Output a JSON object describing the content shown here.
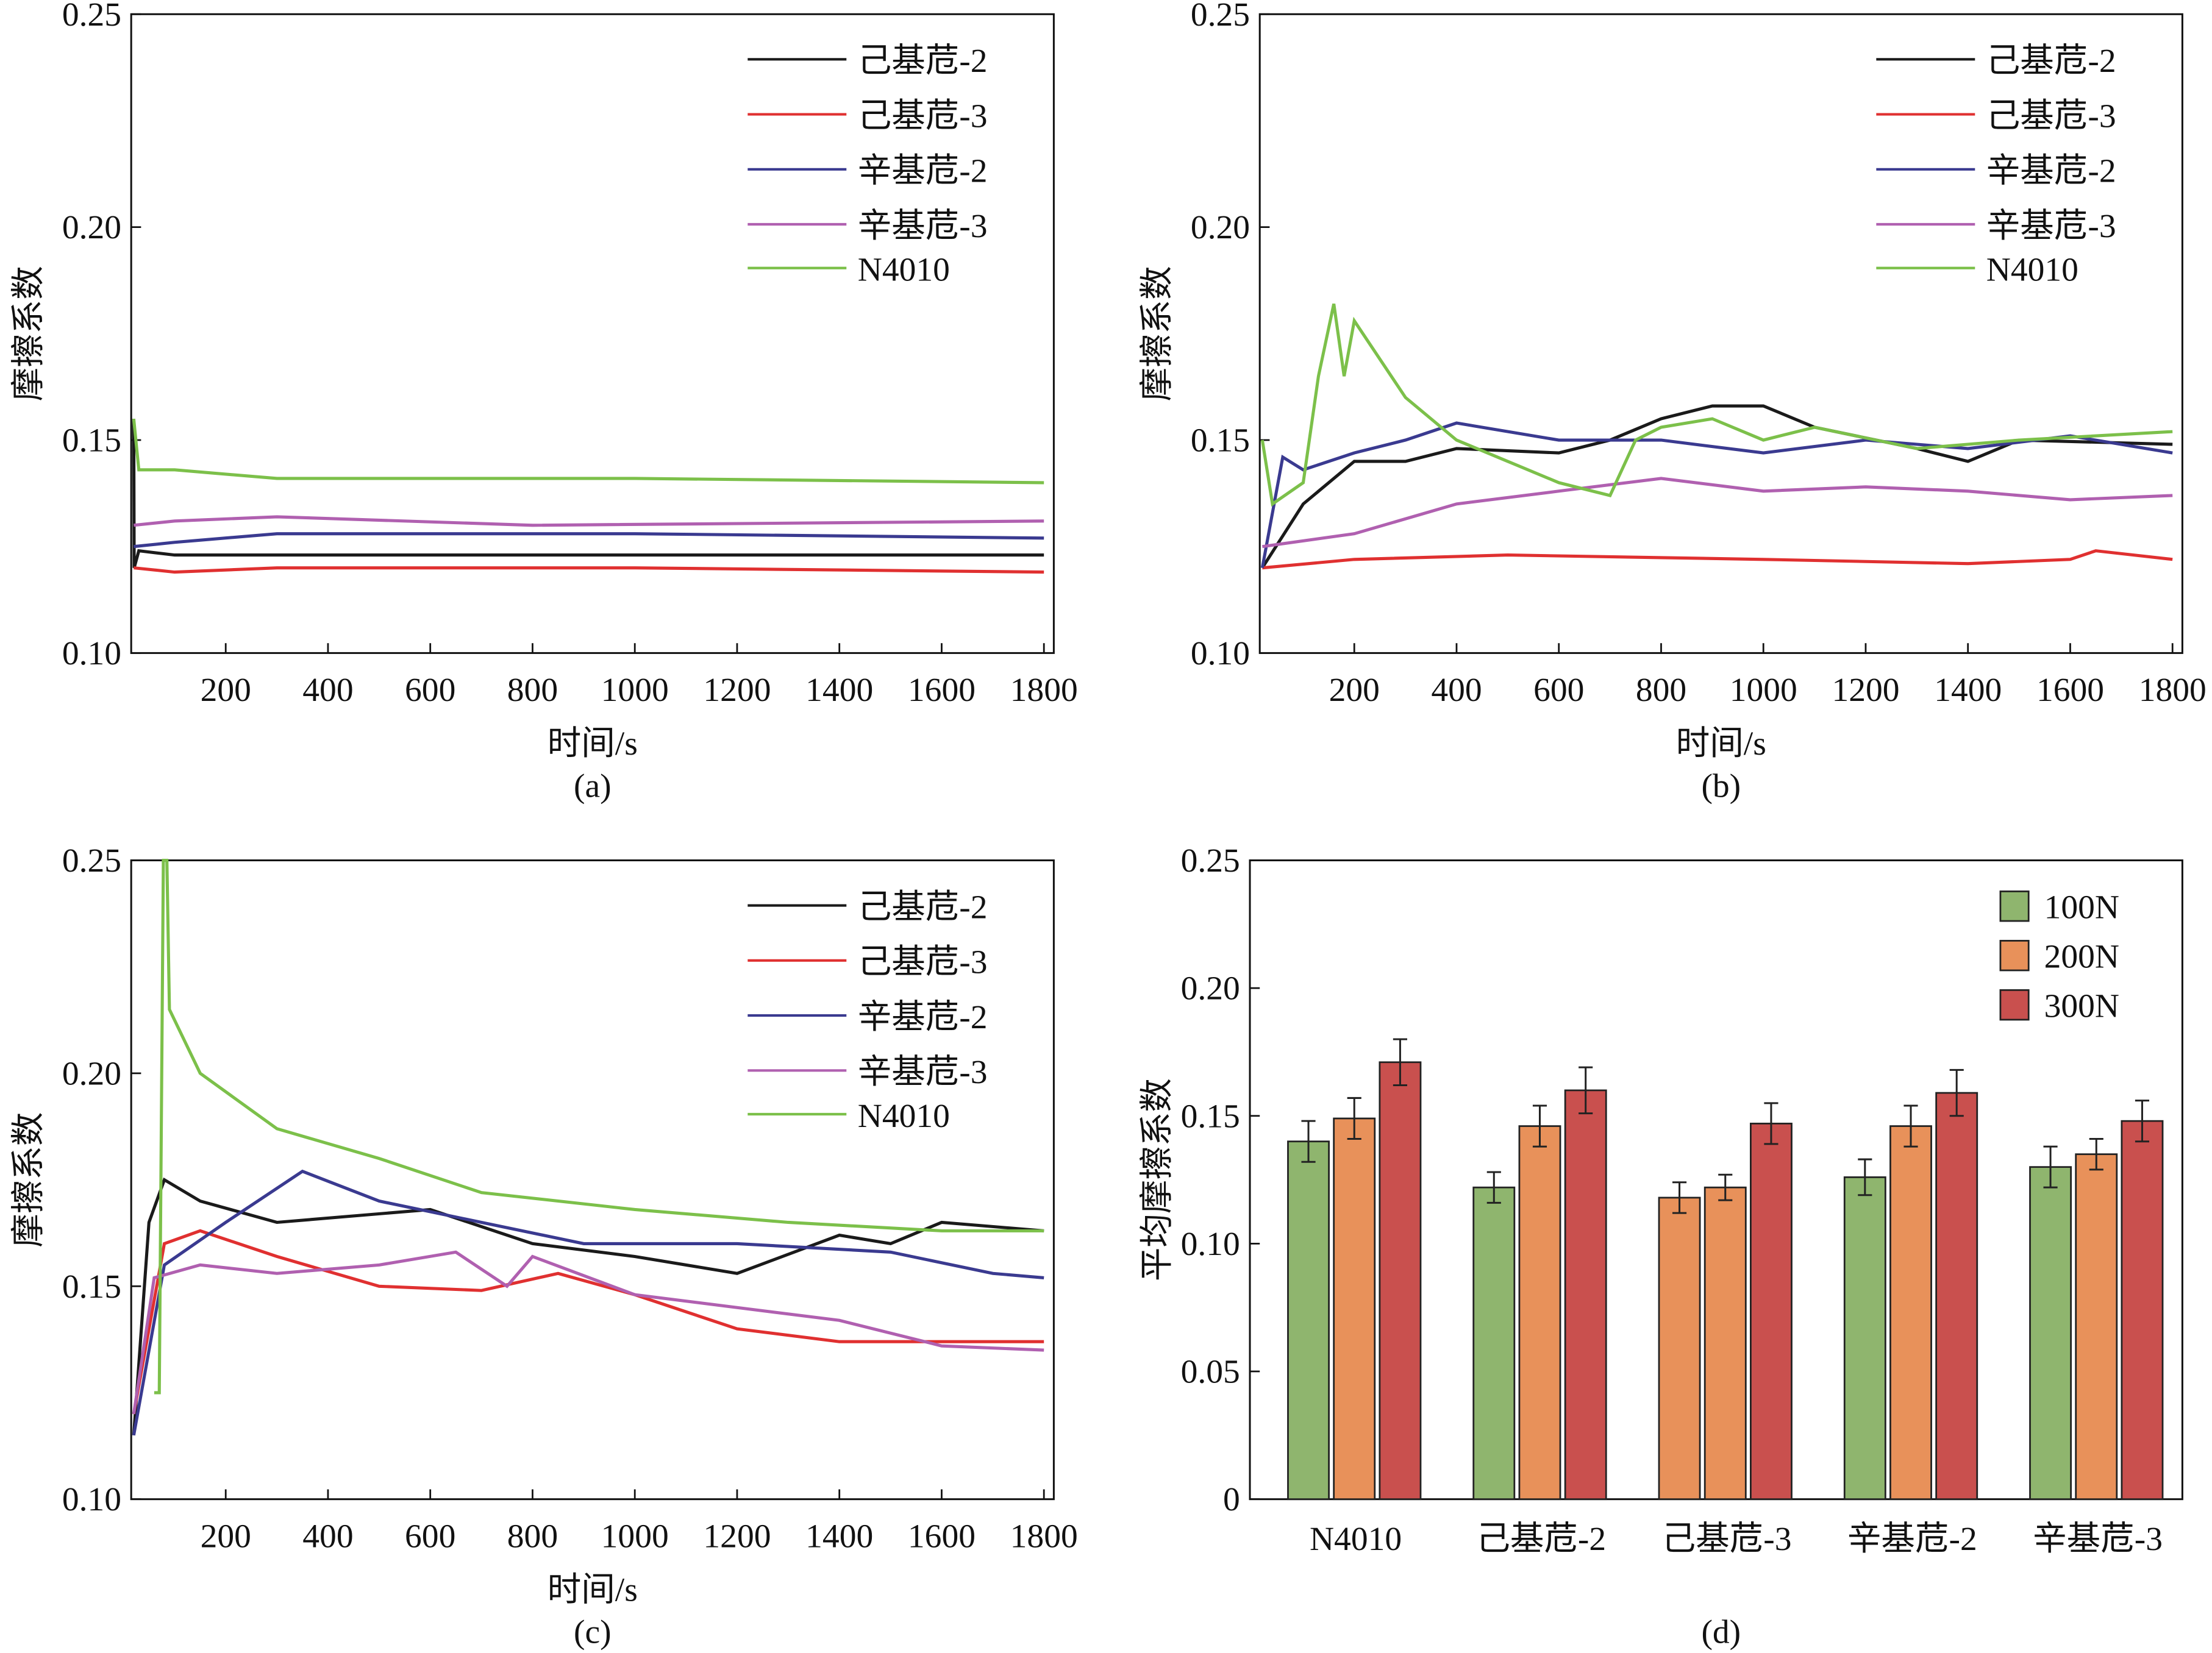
{
  "chart_data": [
    {
      "type": "line",
      "panel_label": "(a)",
      "xlabel": "时间/s",
      "ylabel": "摩擦系数",
      "xlim": [
        0,
        1800
      ],
      "ylim": [
        0.1,
        0.25
      ],
      "xticks": [
        "200",
        "400",
        "600",
        "800",
        "1000",
        "1200",
        "1400",
        "1600",
        "1800"
      ],
      "yticks": [
        "0.10",
        "0.15",
        "0.20",
        "0.25"
      ],
      "legend_position": "top-right",
      "series": [
        {
          "name": "己基苊-2",
          "color": "#1a1a1a",
          "points": [
            [
              20,
              0.155
            ],
            [
              21,
              0.12
            ],
            [
              30,
              0.124
            ],
            [
              100,
              0.123
            ],
            [
              600,
              0.123
            ],
            [
              1800,
              0.123
            ]
          ]
        },
        {
          "name": "己基苊-3",
          "color": "#e03030",
          "points": [
            [
              20,
              0.12
            ],
            [
              100,
              0.119
            ],
            [
              300,
              0.12
            ],
            [
              1000,
              0.12
            ],
            [
              1800,
              0.119
            ]
          ]
        },
        {
          "name": "辛基苊-2",
          "color": "#3a3a90",
          "points": [
            [
              20,
              0.125
            ],
            [
              100,
              0.126
            ],
            [
              300,
              0.128
            ],
            [
              1000,
              0.128
            ],
            [
              1800,
              0.127
            ]
          ]
        },
        {
          "name": "辛基苊-3",
          "color": "#b060b0",
          "points": [
            [
              20,
              0.13
            ],
            [
              100,
              0.131
            ],
            [
              300,
              0.132
            ],
            [
              800,
              0.13
            ],
            [
              1800,
              0.131
            ]
          ]
        },
        {
          "name": "N4010",
          "color": "#7cc04a",
          "points": [
            [
              20,
              0.155
            ],
            [
              30,
              0.143
            ],
            [
              100,
              0.143
            ],
            [
              300,
              0.141
            ],
            [
              1000,
              0.141
            ],
            [
              1800,
              0.14
            ]
          ]
        }
      ]
    },
    {
      "type": "line",
      "panel_label": "(b)",
      "xlabel": "时间/s",
      "ylabel": "摩擦系数",
      "xlim": [
        0,
        1800
      ],
      "ylim": [
        0.1,
        0.25
      ],
      "xticks": [
        "200",
        "400",
        "600",
        "800",
        "1000",
        "1200",
        "1400",
        "1600",
        "1800"
      ],
      "yticks": [
        "0.10",
        "0.15",
        "0.20",
        "0.25"
      ],
      "legend_position": "top-right",
      "series": [
        {
          "name": "己基苊-2",
          "color": "#1a1a1a",
          "points": [
            [
              20,
              0.12
            ],
            [
              100,
              0.135
            ],
            [
              200,
              0.145
            ],
            [
              300,
              0.145
            ],
            [
              400,
              0.148
            ],
            [
              600,
              0.147
            ],
            [
              700,
              0.15
            ],
            [
              800,
              0.155
            ],
            [
              900,
              0.158
            ],
            [
              1000,
              0.158
            ],
            [
              1100,
              0.153
            ],
            [
              1300,
              0.148
            ],
            [
              1400,
              0.145
            ],
            [
              1500,
              0.15
            ],
            [
              1800,
              0.149
            ]
          ]
        },
        {
          "name": "己基苊-3",
          "color": "#e03030",
          "points": [
            [
              20,
              0.12
            ],
            [
              200,
              0.122
            ],
            [
              500,
              0.123
            ],
            [
              1000,
              0.122
            ],
            [
              1400,
              0.121
            ],
            [
              1600,
              0.122
            ],
            [
              1650,
              0.124
            ],
            [
              1800,
              0.122
            ]
          ]
        },
        {
          "name": "辛基苊-2",
          "color": "#3a3a90",
          "points": [
            [
              20,
              0.12
            ],
            [
              60,
              0.146
            ],
            [
              100,
              0.143
            ],
            [
              200,
              0.147
            ],
            [
              300,
              0.15
            ],
            [
              400,
              0.154
            ],
            [
              600,
              0.15
            ],
            [
              800,
              0.15
            ],
            [
              1000,
              0.147
            ],
            [
              1200,
              0.15
            ],
            [
              1400,
              0.148
            ],
            [
              1600,
              0.151
            ],
            [
              1800,
              0.147
            ]
          ]
        },
        {
          "name": "辛基苊-3",
          "color": "#b060b0",
          "points": [
            [
              20,
              0.125
            ],
            [
              200,
              0.128
            ],
            [
              400,
              0.135
            ],
            [
              600,
              0.138
            ],
            [
              800,
              0.141
            ],
            [
              1000,
              0.138
            ],
            [
              1200,
              0.139
            ],
            [
              1400,
              0.138
            ],
            [
              1600,
              0.136
            ],
            [
              1800,
              0.137
            ]
          ]
        },
        {
          "name": "N4010",
          "color": "#7cc04a",
          "points": [
            [
              20,
              0.15
            ],
            [
              40,
              0.135
            ],
            [
              100,
              0.14
            ],
            [
              130,
              0.165
            ],
            [
              160,
              0.182
            ],
            [
              180,
              0.165
            ],
            [
              200,
              0.178
            ],
            [
              300,
              0.16
            ],
            [
              400,
              0.15
            ],
            [
              500,
              0.145
            ],
            [
              600,
              0.14
            ],
            [
              700,
              0.137
            ],
            [
              750,
              0.15
            ],
            [
              800,
              0.153
            ],
            [
              900,
              0.155
            ],
            [
              1000,
              0.15
            ],
            [
              1100,
              0.153
            ],
            [
              1300,
              0.148
            ],
            [
              1500,
              0.15
            ],
            [
              1800,
              0.152
            ]
          ]
        }
      ]
    },
    {
      "type": "line",
      "panel_label": "(c)",
      "xlabel": "时间/s",
      "ylabel": "摩擦系数",
      "xlim": [
        0,
        1800
      ],
      "ylim": [
        0.1,
        0.25
      ],
      "xticks": [
        "200",
        "400",
        "600",
        "800",
        "1000",
        "1200",
        "1400",
        "1600",
        "1800"
      ],
      "yticks": [
        "0.10",
        "0.15",
        "0.20",
        "0.25"
      ],
      "legend_position": "top-right",
      "series": [
        {
          "name": "己基苊-2",
          "color": "#1a1a1a",
          "points": [
            [
              20,
              0.115
            ],
            [
              50,
              0.165
            ],
            [
              80,
              0.175
            ],
            [
              150,
              0.17
            ],
            [
              300,
              0.165
            ],
            [
              600,
              0.168
            ],
            [
              800,
              0.16
            ],
            [
              1000,
              0.157
            ],
            [
              1200,
              0.153
            ],
            [
              1400,
              0.162
            ],
            [
              1500,
              0.16
            ],
            [
              1600,
              0.165
            ],
            [
              1800,
              0.163
            ]
          ]
        },
        {
          "name": "己基苊-3",
          "color": "#e03030",
          "points": [
            [
              20,
              0.12
            ],
            [
              80,
              0.16
            ],
            [
              150,
              0.163
            ],
            [
              300,
              0.157
            ],
            [
              500,
              0.15
            ],
            [
              700,
              0.149
            ],
            [
              850,
              0.153
            ],
            [
              1000,
              0.148
            ],
            [
              1200,
              0.14
            ],
            [
              1400,
              0.137
            ],
            [
              1600,
              0.137
            ],
            [
              1800,
              0.137
            ]
          ]
        },
        {
          "name": "辛基苊-2",
          "color": "#3a3a90",
          "points": [
            [
              20,
              0.115
            ],
            [
              80,
              0.155
            ],
            [
              200,
              0.165
            ],
            [
              350,
              0.177
            ],
            [
              500,
              0.17
            ],
            [
              700,
              0.165
            ],
            [
              900,
              0.16
            ],
            [
              1200,
              0.16
            ],
            [
              1500,
              0.158
            ],
            [
              1700,
              0.153
            ],
            [
              1800,
              0.152
            ]
          ]
        },
        {
          "name": "辛基苊-3",
          "color": "#b060b0",
          "points": [
            [
              20,
              0.12
            ],
            [
              60,
              0.152
            ],
            [
              150,
              0.155
            ],
            [
              300,
              0.153
            ],
            [
              500,
              0.155
            ],
            [
              650,
              0.158
            ],
            [
              750,
              0.15
            ],
            [
              800,
              0.157
            ],
            [
              1000,
              0.148
            ],
            [
              1200,
              0.145
            ],
            [
              1400,
              0.142
            ],
            [
              1600,
              0.136
            ],
            [
              1800,
              0.135
            ]
          ]
        },
        {
          "name": "N4010",
          "color": "#7cc04a",
          "points": [
            [
              60,
              0.125
            ],
            [
              70,
              0.125
            ],
            [
              78,
              0.25
            ],
            [
              85,
              0.25
            ],
            [
              90,
              0.215
            ],
            [
              150,
              0.2
            ],
            [
              300,
              0.187
            ],
            [
              500,
              0.18
            ],
            [
              700,
              0.172
            ],
            [
              1000,
              0.168
            ],
            [
              1300,
              0.165
            ],
            [
              1600,
              0.163
            ],
            [
              1800,
              0.163
            ]
          ]
        }
      ]
    },
    {
      "type": "bar",
      "panel_label": "(d)",
      "xlabel": "",
      "ylabel": "平均摩擦系数",
      "ylim": [
        0,
        0.25
      ],
      "yticks": [
        "0",
        "0.05",
        "0.10",
        "0.15",
        "0.20",
        "0.25"
      ],
      "categories": [
        "N4010",
        "己基苊-2",
        "己基苊-3",
        "辛基苊-2",
        "辛基苊-3"
      ],
      "legend_position": "top-right",
      "series": [
        {
          "name": "100N",
          "color": "#8fb56e",
          "values": [
            0.14,
            0.122,
            0.118,
            0.126,
            0.13
          ],
          "errors": [
            0.008,
            0.006,
            0.006,
            0.007,
            0.008
          ]
        },
        {
          "name": "200N",
          "color": "#e8915a",
          "values": [
            0.149,
            0.146,
            0.122,
            0.146,
            0.135
          ],
          "errors": [
            0.008,
            0.008,
            0.005,
            0.008,
            0.006
          ]
        },
        {
          "name": "300N",
          "color": "#c9504e",
          "values": [
            0.171,
            0.16,
            0.147,
            0.159,
            0.148
          ],
          "errors": [
            0.009,
            0.009,
            0.008,
            0.009,
            0.008
          ]
        }
      ],
      "bar_color_overrides": {
        "己基苊-3": [
          "#e8915a",
          "#e8915a",
          "#c9504e"
        ]
      }
    }
  ]
}
